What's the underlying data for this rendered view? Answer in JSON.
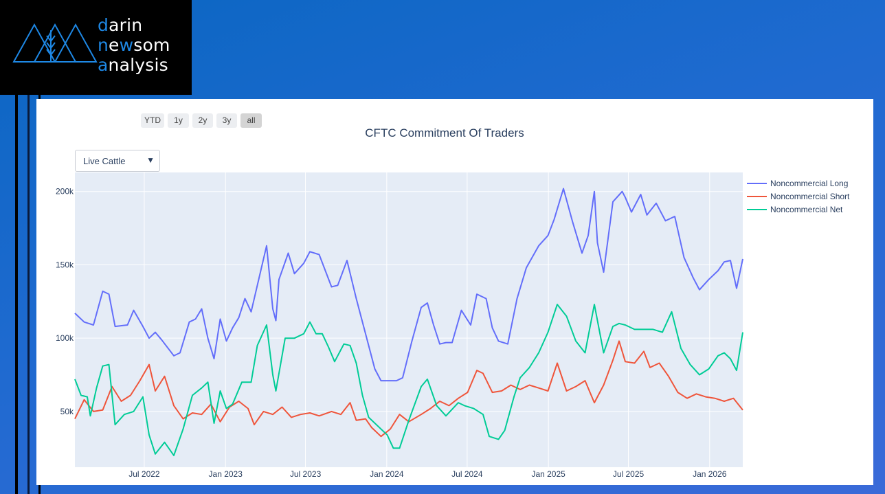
{
  "logo": {
    "line1_first": "d",
    "line1_rest": "arin",
    "line2_first": "n",
    "line2_mid": "e",
    "line2_w": "w",
    "line2_rest": "som",
    "line3_first": "a",
    "line3_rest": "nalysis"
  },
  "range_buttons": [
    {
      "label": "YTD"
    },
    {
      "label": "1y"
    },
    {
      "label": "2y"
    },
    {
      "label": "3y"
    },
    {
      "label": "all"
    }
  ],
  "active_range": "all",
  "dropdown": {
    "selected": "Live Cattle"
  },
  "colors": {
    "long": "#636efa",
    "short": "#ef553b",
    "net": "#00cc96",
    "plot_bg": "#e5ecf6",
    "grid": "#ffffff"
  },
  "chart_data": {
    "type": "line",
    "title": "CFTC Commitment Of Traders",
    "xlabel": "",
    "ylabel": "",
    "x_range": [
      "2022-01-25",
      "2026-03-17"
    ],
    "ylim": [
      12000,
      213000
    ],
    "y_ticks": [
      50000,
      100000,
      150000,
      200000
    ],
    "y_tick_labels": [
      "50k",
      "100k",
      "150k",
      "200k"
    ],
    "x_ticks": [
      "2022-07-01",
      "2023-01-01",
      "2023-07-01",
      "2024-01-01",
      "2024-07-01",
      "2025-01-01",
      "2025-07-01",
      "2026-01-01"
    ],
    "x_tick_labels": [
      "Jul 2022",
      "Jan 2023",
      "Jul 2023",
      "Jan 2024",
      "Jul 2024",
      "Jan 2025",
      "Jul 2025",
      "Jan 2026"
    ],
    "grid": true,
    "legend": "top-right",
    "series": [
      {
        "name": "Noncommercial Long",
        "color": "#636efa",
        "points": [
          [
            "2022-01-25",
            117000
          ],
          [
            "2022-02-15",
            111000
          ],
          [
            "2022-03-08",
            109000
          ],
          [
            "2022-03-29",
            132000
          ],
          [
            "2022-04-12",
            130000
          ],
          [
            "2022-04-26",
            108000
          ],
          [
            "2022-05-24",
            109000
          ],
          [
            "2022-06-07",
            119000
          ],
          [
            "2022-06-28",
            108000
          ],
          [
            "2022-07-12",
            100000
          ],
          [
            "2022-07-26",
            104000
          ],
          [
            "2022-08-09",
            99000
          ],
          [
            "2022-09-06",
            88000
          ],
          [
            "2022-09-20",
            90000
          ],
          [
            "2022-10-11",
            111000
          ],
          [
            "2022-10-25",
            113000
          ],
          [
            "2022-11-08",
            120000
          ],
          [
            "2022-11-22",
            100000
          ],
          [
            "2022-12-06",
            86000
          ],
          [
            "2022-12-20",
            113000
          ],
          [
            "2023-01-03",
            98000
          ],
          [
            "2023-01-17",
            107000
          ],
          [
            "2023-01-31",
            114000
          ],
          [
            "2023-02-14",
            127000
          ],
          [
            "2023-02-28",
            118000
          ],
          [
            "2023-03-21",
            145000
          ],
          [
            "2023-04-04",
            163000
          ],
          [
            "2023-04-18",
            120000
          ],
          [
            "2023-04-25",
            112000
          ],
          [
            "2023-05-02",
            140000
          ],
          [
            "2023-05-23",
            158000
          ],
          [
            "2023-06-06",
            144000
          ],
          [
            "2023-06-27",
            151000
          ],
          [
            "2023-07-11",
            159000
          ],
          [
            "2023-08-01",
            157000
          ],
          [
            "2023-08-15",
            146000
          ],
          [
            "2023-08-29",
            135000
          ],
          [
            "2023-09-12",
            136000
          ],
          [
            "2023-10-03",
            153000
          ],
          [
            "2023-10-24",
            127000
          ],
          [
            "2023-11-14",
            103000
          ],
          [
            "2023-12-05",
            79000
          ],
          [
            "2023-12-19",
            71000
          ],
          [
            "2024-01-09",
            71000
          ],
          [
            "2024-01-23",
            71000
          ],
          [
            "2024-02-06",
            73000
          ],
          [
            "2024-02-27",
            98000
          ],
          [
            "2024-03-19",
            121000
          ],
          [
            "2024-04-02",
            124000
          ],
          [
            "2024-04-16",
            109000
          ],
          [
            "2024-04-30",
            96000
          ],
          [
            "2024-05-14",
            97000
          ],
          [
            "2024-05-28",
            97000
          ],
          [
            "2024-06-18",
            119000
          ],
          [
            "2024-07-09",
            109000
          ],
          [
            "2024-07-23",
            130000
          ],
          [
            "2024-08-13",
            127000
          ],
          [
            "2024-08-27",
            107000
          ],
          [
            "2024-09-10",
            98000
          ],
          [
            "2024-10-01",
            96000
          ],
          [
            "2024-10-22",
            127000
          ],
          [
            "2024-11-12",
            148000
          ],
          [
            "2024-12-10",
            163000
          ],
          [
            "2024-12-31",
            170000
          ],
          [
            "2025-01-14",
            181000
          ],
          [
            "2025-02-04",
            202000
          ],
          [
            "2025-02-25",
            179000
          ],
          [
            "2025-03-18",
            158000
          ],
          [
            "2025-04-01",
            170000
          ],
          [
            "2025-04-15",
            200000
          ],
          [
            "2025-04-22",
            165000
          ],
          [
            "2025-05-06",
            145000
          ],
          [
            "2025-05-27",
            193000
          ],
          [
            "2025-06-17",
            200000
          ],
          [
            "2025-06-24",
            196000
          ],
          [
            "2025-07-08",
            186000
          ],
          [
            "2025-07-29",
            198000
          ],
          [
            "2025-08-12",
            184000
          ],
          [
            "2025-09-02",
            192000
          ],
          [
            "2025-09-23",
            180000
          ],
          [
            "2025-10-14",
            183000
          ],
          [
            "2025-11-04",
            155000
          ],
          [
            "2025-11-25",
            141000
          ],
          [
            "2025-12-09",
            133000
          ],
          [
            "2025-12-30",
            140000
          ],
          [
            "2026-01-20",
            146000
          ],
          [
            "2026-02-03",
            152000
          ],
          [
            "2026-02-17",
            153000
          ],
          [
            "2026-03-03",
            134000
          ],
          [
            "2026-03-17",
            154000
          ]
        ]
      },
      {
        "name": "Noncommercial Short",
        "color": "#ef553b",
        "points": [
          [
            "2022-01-25",
            45000
          ],
          [
            "2022-02-15",
            58000
          ],
          [
            "2022-03-08",
            50000
          ],
          [
            "2022-03-29",
            51000
          ],
          [
            "2022-04-19",
            67000
          ],
          [
            "2022-05-10",
            57000
          ],
          [
            "2022-05-31",
            61000
          ],
          [
            "2022-06-21",
            71000
          ],
          [
            "2022-07-12",
            82000
          ],
          [
            "2022-07-26",
            64000
          ],
          [
            "2022-08-16",
            74000
          ],
          [
            "2022-09-06",
            54000
          ],
          [
            "2022-09-27",
            45000
          ],
          [
            "2022-10-18",
            49000
          ],
          [
            "2022-11-08",
            48000
          ],
          [
            "2022-11-29",
            55000
          ],
          [
            "2022-12-20",
            43000
          ],
          [
            "2023-01-10",
            53000
          ],
          [
            "2023-01-31",
            57000
          ],
          [
            "2023-02-21",
            52000
          ],
          [
            "2023-03-07",
            41000
          ],
          [
            "2023-03-28",
            50000
          ],
          [
            "2023-04-18",
            48000
          ],
          [
            "2023-05-09",
            53000
          ],
          [
            "2023-05-30",
            46000
          ],
          [
            "2023-06-20",
            48000
          ],
          [
            "2023-07-11",
            49000
          ],
          [
            "2023-08-01",
            47000
          ],
          [
            "2023-08-29",
            50000
          ],
          [
            "2023-09-19",
            48000
          ],
          [
            "2023-10-10",
            56000
          ],
          [
            "2023-10-24",
            44000
          ],
          [
            "2023-11-14",
            45000
          ],
          [
            "2023-11-28",
            39000
          ],
          [
            "2023-12-19",
            33000
          ],
          [
            "2024-01-09",
            38000
          ],
          [
            "2024-01-30",
            48000
          ],
          [
            "2024-02-20",
            43000
          ],
          [
            "2024-03-19",
            48000
          ],
          [
            "2024-04-09",
            52000
          ],
          [
            "2024-04-30",
            57000
          ],
          [
            "2024-05-21",
            54000
          ],
          [
            "2024-06-11",
            59000
          ],
          [
            "2024-07-02",
            63000
          ],
          [
            "2024-07-23",
            78000
          ],
          [
            "2024-08-06",
            76000
          ],
          [
            "2024-08-27",
            63000
          ],
          [
            "2024-09-17",
            64000
          ],
          [
            "2024-10-08",
            68000
          ],
          [
            "2024-10-29",
            65000
          ],
          [
            "2024-11-19",
            68000
          ],
          [
            "2024-12-10",
            66000
          ],
          [
            "2024-12-31",
            64000
          ],
          [
            "2025-01-21",
            83000
          ],
          [
            "2025-02-11",
            64000
          ],
          [
            "2025-03-04",
            67000
          ],
          [
            "2025-03-25",
            71000
          ],
          [
            "2025-04-15",
            56000
          ],
          [
            "2025-05-06",
            68000
          ],
          [
            "2025-05-27",
            85000
          ],
          [
            "2025-06-10",
            98000
          ],
          [
            "2025-06-24",
            84000
          ],
          [
            "2025-07-15",
            83000
          ],
          [
            "2025-08-05",
            91000
          ],
          [
            "2025-08-19",
            80000
          ],
          [
            "2025-09-09",
            83000
          ],
          [
            "2025-09-30",
            74000
          ],
          [
            "2025-10-21",
            63000
          ],
          [
            "2025-11-11",
            59000
          ],
          [
            "2025-12-02",
            62000
          ],
          [
            "2025-12-23",
            60000
          ],
          [
            "2026-01-13",
            59000
          ],
          [
            "2026-02-03",
            57000
          ],
          [
            "2026-02-24",
            59000
          ],
          [
            "2026-03-17",
            51000
          ]
        ]
      },
      {
        "name": "Noncommercial Net",
        "color": "#00cc96",
        "points": [
          [
            "2022-01-25",
            72000
          ],
          [
            "2022-02-08",
            61000
          ],
          [
            "2022-02-22",
            60000
          ],
          [
            "2022-03-01",
            47000
          ],
          [
            "2022-03-15",
            66000
          ],
          [
            "2022-03-29",
            81000
          ],
          [
            "2022-04-12",
            82000
          ],
          [
            "2022-04-26",
            41000
          ],
          [
            "2022-05-17",
            48000
          ],
          [
            "2022-06-07",
            50000
          ],
          [
            "2022-06-28",
            60000
          ],
          [
            "2022-07-12",
            34000
          ],
          [
            "2022-07-26",
            21000
          ],
          [
            "2022-08-16",
            29000
          ],
          [
            "2022-09-06",
            20000
          ],
          [
            "2022-09-27",
            38000
          ],
          [
            "2022-10-18",
            61000
          ],
          [
            "2022-11-08",
            66000
          ],
          [
            "2022-11-22",
            70000
          ],
          [
            "2022-12-06",
            42000
          ],
          [
            "2022-12-20",
            64000
          ],
          [
            "2023-01-03",
            52000
          ],
          [
            "2023-01-17",
            55000
          ],
          [
            "2023-02-07",
            70000
          ],
          [
            "2023-02-28",
            70000
          ],
          [
            "2023-03-14",
            95000
          ],
          [
            "2023-04-04",
            109000
          ],
          [
            "2023-04-18",
            75000
          ],
          [
            "2023-04-25",
            64000
          ],
          [
            "2023-05-16",
            100000
          ],
          [
            "2023-06-06",
            100000
          ],
          [
            "2023-06-27",
            103000
          ],
          [
            "2023-07-11",
            111000
          ],
          [
            "2023-07-25",
            103000
          ],
          [
            "2023-08-08",
            103000
          ],
          [
            "2023-08-22",
            94000
          ],
          [
            "2023-09-05",
            84000
          ],
          [
            "2023-09-26",
            96000
          ],
          [
            "2023-10-10",
            95000
          ],
          [
            "2023-10-24",
            83000
          ],
          [
            "2023-11-07",
            61000
          ],
          [
            "2023-11-21",
            46000
          ],
          [
            "2023-12-12",
            40000
          ],
          [
            "2024-01-02",
            34000
          ],
          [
            "2024-01-16",
            25000
          ],
          [
            "2024-01-30",
            25000
          ],
          [
            "2024-02-20",
            44000
          ],
          [
            "2024-03-19",
            67000
          ],
          [
            "2024-04-02",
            72000
          ],
          [
            "2024-04-23",
            54000
          ],
          [
            "2024-05-14",
            47000
          ],
          [
            "2024-06-11",
            56000
          ],
          [
            "2024-06-25",
            54000
          ],
          [
            "2024-07-16",
            52000
          ],
          [
            "2024-08-06",
            48000
          ],
          [
            "2024-08-20",
            33000
          ],
          [
            "2024-09-10",
            31000
          ],
          [
            "2024-09-24",
            37000
          ],
          [
            "2024-10-15",
            60000
          ],
          [
            "2024-10-29",
            73000
          ],
          [
            "2024-11-19",
            80000
          ],
          [
            "2024-12-10",
            90000
          ],
          [
            "2024-12-31",
            104000
          ],
          [
            "2025-01-21",
            123000
          ],
          [
            "2025-02-11",
            115000
          ],
          [
            "2025-03-04",
            98000
          ],
          [
            "2025-03-25",
            90000
          ],
          [
            "2025-04-15",
            123000
          ],
          [
            "2025-05-06",
            90000
          ],
          [
            "2025-05-27",
            108000
          ],
          [
            "2025-06-10",
            110000
          ],
          [
            "2025-06-24",
            109000
          ],
          [
            "2025-07-15",
            106000
          ],
          [
            "2025-08-05",
            106000
          ],
          [
            "2025-08-26",
            106000
          ],
          [
            "2025-09-16",
            104000
          ],
          [
            "2025-10-07",
            118000
          ],
          [
            "2025-10-28",
            93000
          ],
          [
            "2025-11-18",
            82000
          ],
          [
            "2025-12-09",
            75000
          ],
          [
            "2025-12-30",
            79000
          ],
          [
            "2026-01-20",
            88000
          ],
          [
            "2026-02-03",
            90000
          ],
          [
            "2026-02-17",
            86000
          ],
          [
            "2026-03-03",
            78000
          ],
          [
            "2026-03-17",
            104000
          ]
        ]
      }
    ]
  }
}
